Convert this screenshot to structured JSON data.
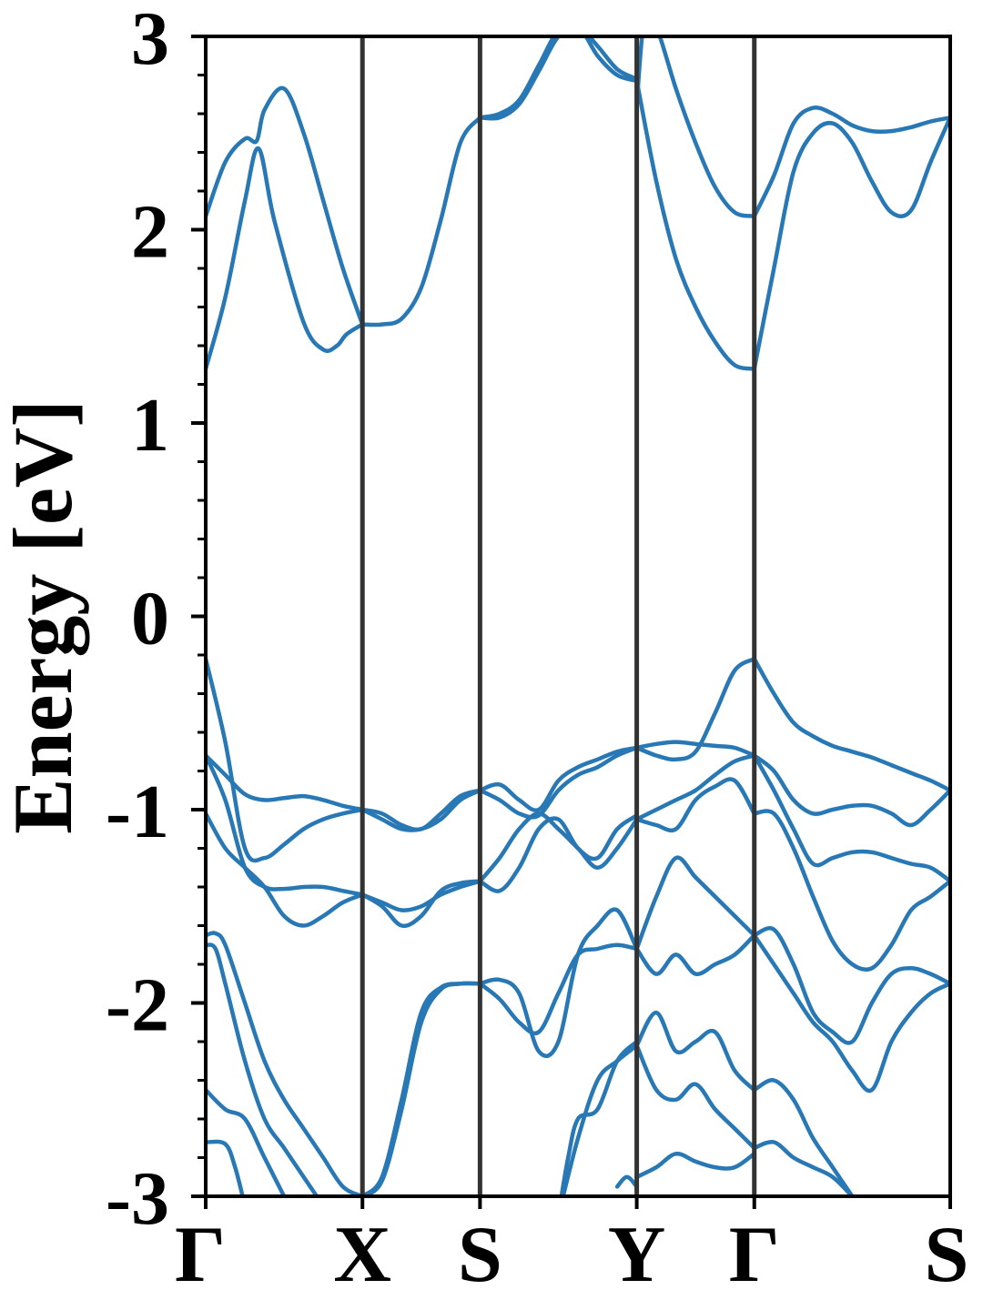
{
  "chart_data": {
    "type": "line",
    "title": "",
    "xlabel": "",
    "ylabel": "Energy [eV]",
    "ylim": [
      -3,
      3
    ],
    "yticks": [
      {
        "value": 3,
        "label": "3"
      },
      {
        "value": 2,
        "label": "2"
      },
      {
        "value": 1,
        "label": "1"
      },
      {
        "value": 0,
        "label": "0"
      },
      {
        "value": -1,
        "label": "-1"
      },
      {
        "value": -2,
        "label": "-2"
      },
      {
        "value": -3,
        "label": "-3"
      }
    ],
    "xlim": [
      0,
      3.8
    ],
    "high_symmetry_points": [
      {
        "x": 0.0,
        "label": "Γ"
      },
      {
        "x": 0.8,
        "label": "X"
      },
      {
        "x": 1.4,
        "label": "S"
      },
      {
        "x": 2.2,
        "label": "Y"
      },
      {
        "x": 2.8,
        "label": "Γ"
      },
      {
        "x": 3.8,
        "label": "S"
      }
    ],
    "grid": false,
    "line_color": "#2878b5",
    "divider_color": "#333333",
    "series": [
      {
        "x": [
          0.0,
          0.1,
          0.2,
          0.26,
          0.3,
          0.4,
          0.5,
          0.6,
          0.7,
          0.8
        ],
        "y": [
          2.07,
          2.35,
          2.47,
          2.46,
          2.62,
          2.73,
          2.5,
          2.15,
          1.8,
          1.51
        ]
      },
      {
        "x": [
          0.0,
          0.1,
          0.2,
          0.27,
          0.35,
          0.5,
          0.6,
          0.67,
          0.72,
          0.8
        ],
        "y": [
          1.28,
          1.65,
          2.15,
          2.42,
          2.05,
          1.52,
          1.38,
          1.4,
          1.46,
          1.51
        ]
      },
      {
        "x": [
          0.8,
          0.9,
          1.0,
          1.1,
          1.2,
          1.3,
          1.4
        ],
        "y": [
          1.51,
          1.51,
          1.54,
          1.7,
          2.05,
          2.45,
          2.58
        ]
      },
      {
        "x": [
          1.4,
          1.5,
          1.6,
          1.7,
          1.8,
          1.9,
          2.0,
          2.1,
          2.2
        ],
        "y": [
          2.58,
          2.6,
          2.67,
          2.85,
          3.03,
          3.05,
          2.95,
          2.83,
          2.78
        ]
      },
      {
        "x": [
          1.4,
          1.5,
          1.6,
          1.7,
          1.8,
          1.9,
          2.0,
          2.1,
          2.2
        ],
        "y": [
          2.58,
          2.58,
          2.65,
          2.82,
          3.0,
          3.05,
          2.9,
          2.8,
          2.77
        ]
      },
      {
        "x": [
          2.2,
          2.3,
          2.4,
          2.5,
          2.6,
          2.7,
          2.8
        ],
        "y": [
          2.77,
          2.25,
          1.85,
          1.6,
          1.42,
          1.3,
          1.28
        ]
      },
      {
        "x": [
          2.2,
          2.24,
          2.3,
          2.4,
          2.5,
          2.6,
          2.7,
          2.8
        ],
        "y": [
          2.65,
          3.1,
          3.05,
          2.73,
          2.45,
          2.22,
          2.09,
          2.07
        ]
      },
      {
        "x": [
          2.8,
          2.9,
          3.0,
          3.1,
          3.2,
          3.3,
          3.4,
          3.5,
          3.6,
          3.7,
          3.8
        ],
        "y": [
          2.07,
          2.28,
          2.55,
          2.63,
          2.6,
          2.54,
          2.51,
          2.51,
          2.53,
          2.56,
          2.58
        ]
      },
      {
        "x": [
          2.8,
          2.9,
          3.0,
          3.1,
          3.2,
          3.3,
          3.4,
          3.5,
          3.6,
          3.7,
          3.8
        ],
        "y": [
          1.28,
          1.8,
          2.3,
          2.5,
          2.55,
          2.45,
          2.25,
          2.09,
          2.1,
          2.35,
          2.58
        ]
      },
      {
        "x": [
          0.0,
          0.1,
          0.2,
          0.3,
          0.4,
          0.5,
          0.6,
          0.7,
          0.8
        ],
        "y": [
          -0.22,
          -0.65,
          -1.2,
          -1.25,
          -1.18,
          -1.1,
          -1.05,
          -1.02,
          -1.0
        ]
      },
      {
        "x": [
          0.0,
          0.1,
          0.2,
          0.3,
          0.4,
          0.5,
          0.6,
          0.7,
          0.8
        ],
        "y": [
          -0.72,
          -0.82,
          -0.92,
          -0.95,
          -0.94,
          -0.93,
          -0.95,
          -0.98,
          -1.0
        ]
      },
      {
        "x": [
          0.0,
          0.1,
          0.2,
          0.3,
          0.4,
          0.5,
          0.6,
          0.7,
          0.8
        ],
        "y": [
          -0.72,
          -0.95,
          -1.3,
          -1.4,
          -1.41,
          -1.4,
          -1.4,
          -1.42,
          -1.44
        ]
      },
      {
        "x": [
          0.0,
          0.1,
          0.2,
          0.3,
          0.4,
          0.5,
          0.6,
          0.7,
          0.8
        ],
        "y": [
          -1.02,
          -1.2,
          -1.3,
          -1.4,
          -1.55,
          -1.6,
          -1.55,
          -1.48,
          -1.44
        ]
      },
      {
        "x": [
          0.8,
          0.9,
          1.0,
          1.1,
          1.2,
          1.3,
          1.4
        ],
        "y": [
          -1.0,
          -1.05,
          -1.1,
          -1.1,
          -1.05,
          -0.95,
          -0.9
        ]
      },
      {
        "x": [
          0.8,
          0.9,
          1.0,
          1.1,
          1.2,
          1.3,
          1.4
        ],
        "y": [
          -1.0,
          -1.02,
          -1.08,
          -1.1,
          -1.02,
          -0.93,
          -0.9
        ]
      },
      {
        "x": [
          0.8,
          0.9,
          1.0,
          1.1,
          1.2,
          1.3,
          1.4
        ],
        "y": [
          -1.44,
          -1.48,
          -1.52,
          -1.5,
          -1.44,
          -1.4,
          -1.37
        ]
      },
      {
        "x": [
          0.8,
          0.9,
          1.0,
          1.1,
          1.2,
          1.3,
          1.4
        ],
        "y": [
          -1.44,
          -1.5,
          -1.6,
          -1.55,
          -1.42,
          -1.38,
          -1.37
        ]
      },
      {
        "x": [
          1.4,
          1.5,
          1.6,
          1.7,
          1.8,
          1.9,
          2.0,
          2.1,
          2.2
        ],
        "y": [
          -0.9,
          -0.95,
          -1.02,
          -1.03,
          -0.9,
          -0.82,
          -0.78,
          -0.72,
          -0.68
        ]
      },
      {
        "x": [
          1.4,
          1.5,
          1.6,
          1.7,
          1.8,
          1.9,
          2.0,
          2.1,
          2.2
        ],
        "y": [
          -0.9,
          -0.87,
          -0.95,
          -1.0,
          -0.85,
          -0.78,
          -0.74,
          -0.7,
          -0.68
        ]
      },
      {
        "x": [
          1.4,
          1.5,
          1.6,
          1.7,
          1.8,
          1.9,
          2.0,
          2.1,
          2.2
        ],
        "y": [
          -1.37,
          -1.42,
          -1.3,
          -1.1,
          -1.05,
          -1.2,
          -1.25,
          -1.1,
          -1.03
        ]
      },
      {
        "x": [
          1.4,
          1.5,
          1.6,
          1.7,
          1.8,
          1.9,
          2.0,
          2.1,
          2.2
        ],
        "y": [
          -1.37,
          -1.25,
          -1.1,
          -1.02,
          -1.1,
          -1.2,
          -1.3,
          -1.2,
          -1.05
        ]
      },
      {
        "x": [
          2.2,
          2.3,
          2.4,
          2.5,
          2.6,
          2.7,
          2.8
        ],
        "y": [
          -0.68,
          -0.72,
          -0.74,
          -0.7,
          -0.5,
          -0.28,
          -0.22
        ]
      },
      {
        "x": [
          2.2,
          2.3,
          2.4,
          2.5,
          2.6,
          2.7,
          2.8
        ],
        "y": [
          -0.68,
          -0.66,
          -0.65,
          -0.66,
          -0.67,
          -0.68,
          -0.72
        ]
      },
      {
        "x": [
          2.2,
          2.3,
          2.4,
          2.5,
          2.6,
          2.7,
          2.8
        ],
        "y": [
          -1.05,
          -1.0,
          -0.95,
          -0.9,
          -0.82,
          -0.75,
          -0.72
        ]
      },
      {
        "x": [
          2.2,
          2.3,
          2.4,
          2.5,
          2.6,
          2.7,
          2.8
        ],
        "y": [
          -1.05,
          -1.08,
          -1.1,
          -0.95,
          -0.88,
          -0.85,
          -1.02
        ]
      },
      {
        "x": [
          2.8,
          2.9,
          3.0,
          3.1,
          3.2,
          3.3,
          3.4,
          3.5,
          3.6,
          3.7,
          3.8
        ],
        "y": [
          -0.22,
          -0.4,
          -0.55,
          -0.62,
          -0.67,
          -0.7,
          -0.73,
          -0.77,
          -0.81,
          -0.85,
          -0.9
        ]
      },
      {
        "x": [
          2.8,
          2.9,
          3.0,
          3.1,
          3.2,
          3.3,
          3.4,
          3.5,
          3.6,
          3.7,
          3.8
        ],
        "y": [
          -0.72,
          -0.8,
          -0.95,
          -1.02,
          -1.0,
          -0.98,
          -0.98,
          -1.02,
          -1.08,
          -1.0,
          -0.9
        ]
      },
      {
        "x": [
          2.8,
          2.9,
          3.0,
          3.1,
          3.2,
          3.3,
          3.4,
          3.5,
          3.6,
          3.7,
          3.8
        ],
        "y": [
          -0.72,
          -0.9,
          -1.1,
          -1.28,
          -1.25,
          -1.22,
          -1.22,
          -1.25,
          -1.28,
          -1.3,
          -1.37
        ]
      },
      {
        "x": [
          2.8,
          2.9,
          3.0,
          3.1,
          3.2,
          3.3,
          3.4,
          3.5,
          3.6,
          3.7,
          3.8
        ],
        "y": [
          -1.02,
          -1.02,
          -1.2,
          -1.45,
          -1.68,
          -1.8,
          -1.82,
          -1.7,
          -1.52,
          -1.45,
          -1.37
        ]
      },
      {
        "x": [
          0.0,
          0.05,
          0.1,
          0.2,
          0.3,
          0.4,
          0.5,
          0.6,
          0.7,
          0.8
        ],
        "y": [
          -1.65,
          -1.64,
          -1.7,
          -2.0,
          -2.3,
          -2.5,
          -2.65,
          -2.8,
          -2.95,
          -3.0
        ]
      },
      {
        "x": [
          0.0,
          0.05,
          0.1,
          0.2,
          0.3,
          0.4,
          0.5,
          0.6,
          0.7,
          0.8
        ],
        "y": [
          -1.7,
          -1.72,
          -1.9,
          -2.3,
          -2.6,
          -2.75,
          -2.9,
          -3.05,
          -3.2,
          -3.3
        ]
      },
      {
        "x": [
          0.0,
          0.1,
          0.2,
          0.3,
          0.4,
          0.45
        ],
        "y": [
          -2.45,
          -2.55,
          -2.6,
          -2.8,
          -3.0,
          -3.1
        ]
      },
      {
        "x": [
          0.0,
          0.1,
          0.15,
          0.2
        ],
        "y": [
          -2.72,
          -2.73,
          -2.85,
          -3.05
        ]
      },
      {
        "x": [
          0.8,
          0.9,
          1.0,
          1.1,
          1.2,
          1.3,
          1.4
        ],
        "y": [
          -3.0,
          -2.9,
          -2.5,
          -2.05,
          -1.92,
          -1.9,
          -1.9
        ]
      },
      {
        "x": [
          0.8,
          0.9,
          1.0,
          1.1,
          1.2,
          1.3,
          1.4
        ],
        "y": [
          -3.0,
          -2.92,
          -2.55,
          -2.1,
          -1.93,
          -1.9,
          -1.9
        ]
      },
      {
        "x": [
          1.4,
          1.5,
          1.6,
          1.7,
          1.8,
          1.9,
          2.0,
          2.1,
          2.2
        ],
        "y": [
          -1.9,
          -1.98,
          -2.1,
          -2.15,
          -1.95,
          -1.75,
          -1.72,
          -1.7,
          -1.72
        ]
      },
      {
        "x": [
          1.4,
          1.5,
          1.6,
          1.7,
          1.8,
          1.9,
          2.0,
          2.1,
          2.2
        ],
        "y": [
          -1.9,
          -1.88,
          -1.95,
          -2.25,
          -2.2,
          -1.75,
          -1.6,
          -1.52,
          -1.72
        ]
      },
      {
        "x": [
          1.8,
          1.9,
          2.0,
          2.1,
          2.2
        ],
        "y": [
          -3.1,
          -2.7,
          -2.4,
          -2.3,
          -2.22
        ]
      },
      {
        "x": [
          1.8,
          1.85,
          1.9,
          2.0,
          2.1,
          2.2
        ],
        "y": [
          -3.1,
          -2.8,
          -2.6,
          -2.55,
          -2.3,
          -2.2
        ]
      },
      {
        "x": [
          2.1,
          2.15,
          2.2
        ],
        "y": [
          -2.95,
          -2.9,
          -2.95
        ]
      },
      {
        "x": [
          2.2,
          2.3,
          2.4,
          2.5,
          2.6,
          2.7,
          2.8
        ],
        "y": [
          -1.72,
          -1.85,
          -1.75,
          -1.85,
          -1.8,
          -1.75,
          -1.65
        ]
      },
      {
        "x": [
          2.2,
          2.3,
          2.4,
          2.5,
          2.6,
          2.7,
          2.8
        ],
        "y": [
          -1.72,
          -1.45,
          -1.25,
          -1.35,
          -1.45,
          -1.55,
          -1.65
        ]
      },
      {
        "x": [
          2.2,
          2.3,
          2.4,
          2.5,
          2.6,
          2.7,
          2.8
        ],
        "y": [
          -2.22,
          -2.05,
          -2.25,
          -2.2,
          -2.15,
          -2.35,
          -2.45
        ]
      },
      {
        "x": [
          2.2,
          2.3,
          2.4,
          2.5,
          2.6,
          2.7,
          2.8
        ],
        "y": [
          -2.22,
          -2.45,
          -2.5,
          -2.42,
          -2.55,
          -2.65,
          -2.75
        ]
      },
      {
        "x": [
          2.2,
          2.3,
          2.4,
          2.5,
          2.6,
          2.7,
          2.8
        ],
        "y": [
          -2.9,
          -2.85,
          -2.78,
          -2.82,
          -2.85,
          -2.85,
          -2.78
        ]
      },
      {
        "x": [
          2.8,
          2.9,
          3.0,
          3.1,
          3.2,
          3.3,
          3.4,
          3.5,
          3.6,
          3.7,
          3.8
        ],
        "y": [
          -1.65,
          -1.62,
          -1.8,
          -2.05,
          -2.15,
          -2.2,
          -2.0,
          -1.85,
          -1.82,
          -1.85,
          -1.9
        ]
      },
      {
        "x": [
          2.8,
          2.9,
          3.0,
          3.1,
          3.2,
          3.3,
          3.4,
          3.5,
          3.6,
          3.7,
          3.8
        ],
        "y": [
          -1.65,
          -1.8,
          -1.95,
          -2.1,
          -2.2,
          -2.35,
          -2.45,
          -2.2,
          -2.05,
          -1.95,
          -1.9
        ]
      },
      {
        "x": [
          2.8,
          2.9,
          3.0,
          3.1,
          3.2,
          3.3
        ],
        "y": [
          -2.45,
          -2.4,
          -2.5,
          -2.7,
          -2.85,
          -3.0
        ]
      },
      {
        "x": [
          2.8,
          2.9,
          3.0,
          3.1,
          3.2,
          3.3,
          3.4
        ],
        "y": [
          -2.75,
          -2.72,
          -2.8,
          -2.85,
          -2.9,
          -3.0,
          -3.1
        ]
      }
    ]
  }
}
